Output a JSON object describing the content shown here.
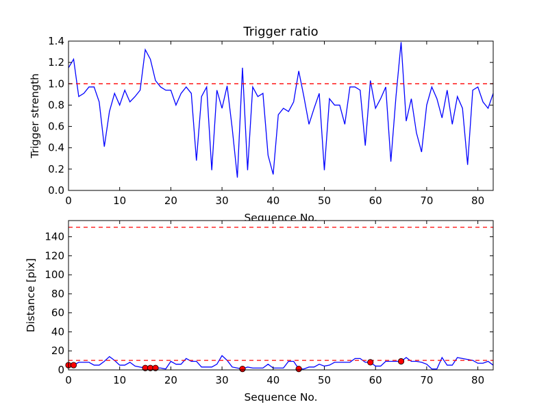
{
  "chart_data": [
    {
      "type": "line",
      "title": "Trigger ratio",
      "xlabel": "Sequence No.",
      "ylabel": "Trigger strength",
      "xlim": [
        0,
        83
      ],
      "ylim": [
        0,
        1.4
      ],
      "xticks": [
        0,
        10,
        20,
        30,
        40,
        50,
        60,
        70,
        80
      ],
      "yticks": [
        0.0,
        0.2,
        0.4,
        0.6,
        0.8,
        1.0,
        1.2,
        1.4
      ],
      "ytick_labels": [
        "0.0",
        "0.2",
        "0.4",
        "0.6",
        "0.8",
        "1.0",
        "1.2",
        "1.4"
      ],
      "grid": false,
      "series": [
        {
          "color": "#0000ff",
          "style": "solid",
          "x": [
            0,
            1,
            2,
            3,
            4,
            5,
            6,
            7,
            8,
            9,
            10,
            11,
            12,
            13,
            14,
            15,
            16,
            17,
            18,
            19,
            20,
            21,
            22,
            23,
            24,
            25,
            26,
            27,
            28,
            29,
            30,
            31,
            32,
            33,
            34,
            35,
            36,
            37,
            38,
            39,
            40,
            41,
            42,
            43,
            44,
            45,
            46,
            47,
            48,
            49,
            50,
            51,
            52,
            53,
            54,
            55,
            56,
            57,
            58,
            59,
            60,
            61,
            62,
            63,
            64,
            65,
            66,
            67,
            68,
            69,
            70,
            71,
            72,
            73,
            74,
            75,
            76,
            77,
            78,
            79,
            80,
            81,
            82,
            83
          ],
          "values": [
            1.15,
            1.23,
            0.88,
            0.91,
            0.97,
            0.97,
            0.83,
            0.41,
            0.74,
            0.91,
            0.8,
            0.94,
            0.83,
            0.88,
            0.94,
            1.32,
            1.23,
            1.03,
            0.97,
            0.94,
            0.94,
            0.8,
            0.91,
            0.97,
            0.91,
            0.28,
            0.88,
            0.97,
            0.19,
            0.94,
            0.77,
            0.98,
            0.58,
            0.12,
            1.15,
            0.19,
            0.97,
            0.88,
            0.91,
            0.33,
            0.15,
            0.71,
            0.77,
            0.74,
            0.83,
            1.12,
            0.88,
            0.62,
            0.77,
            0.91,
            0.19,
            0.86,
            0.8,
            0.8,
            0.62,
            0.97,
            0.97,
            0.94,
            0.42,
            1.03,
            0.77,
            0.86,
            0.97,
            0.27,
            0.88,
            1.39,
            0.65,
            0.86,
            0.54,
            0.36,
            0.8,
            0.97,
            0.86,
            0.68,
            0.94,
            0.62,
            0.88,
            0.77,
            0.24,
            0.94,
            0.97,
            0.83,
            0.77,
            0.91
          ]
        },
        {
          "color": "#ff0000",
          "style": "dashed",
          "x": [
            0,
            83
          ],
          "values": [
            1.0,
            1.0
          ]
        }
      ]
    },
    {
      "type": "line",
      "title": "",
      "xlabel": "Sequence No.",
      "ylabel": "Distance [pix]",
      "xlim": [
        0,
        83
      ],
      "ylim": [
        0,
        157
      ],
      "xticks": [
        0,
        10,
        20,
        30,
        40,
        50,
        60,
        70,
        80
      ],
      "yticks": [
        0,
        20,
        40,
        60,
        80,
        100,
        120,
        140
      ],
      "ytick_labels": [
        "0",
        "20",
        "40",
        "60",
        "80",
        "100",
        "120",
        "140"
      ],
      "grid": false,
      "series": [
        {
          "color": "#0000ff",
          "style": "solid",
          "x": [
            0,
            1,
            2,
            3,
            4,
            5,
            6,
            7,
            8,
            9,
            10,
            11,
            12,
            13,
            14,
            15,
            16,
            17,
            18,
            19,
            20,
            21,
            22,
            23,
            24,
            25,
            26,
            27,
            28,
            29,
            30,
            31,
            32,
            33,
            34,
            35,
            36,
            37,
            38,
            39,
            40,
            41,
            42,
            43,
            44,
            45,
            46,
            47,
            48,
            49,
            50,
            51,
            52,
            53,
            54,
            55,
            56,
            57,
            58,
            59,
            60,
            61,
            62,
            63,
            64,
            65,
            66,
            67,
            68,
            69,
            70,
            71,
            72,
            73,
            74,
            75,
            76,
            77,
            78,
            79,
            80,
            81,
            82,
            83
          ],
          "values": [
            5,
            5,
            8,
            8,
            8,
            5,
            5,
            9,
            14,
            10,
            5,
            5,
            8,
            4,
            3,
            2,
            2,
            2,
            2,
            1,
            9,
            6,
            6,
            12,
            9,
            9,
            3,
            3,
            3,
            6,
            15,
            10,
            3,
            2,
            1,
            3,
            2,
            2,
            2,
            6,
            2,
            2,
            2,
            9,
            9,
            1,
            1,
            3,
            3,
            6,
            4,
            5,
            8,
            8,
            8,
            8,
            12,
            12,
            8,
            8,
            4,
            4,
            9,
            9,
            9,
            9,
            13,
            9,
            9,
            8,
            6,
            1,
            1,
            13,
            5,
            5,
            13,
            12,
            11,
            10,
            7,
            7,
            9,
            5
          ]
        },
        {
          "color": "#ff0000",
          "style": "dashed",
          "x": [
            0,
            83
          ],
          "values": [
            150,
            150
          ]
        },
        {
          "color": "#ff0000",
          "style": "dashed",
          "x": [
            0,
            83
          ],
          "values": [
            10,
            10
          ]
        },
        {
          "color": "#ff0000",
          "style": "markers",
          "x": [
            0,
            1,
            15,
            16,
            17,
            34,
            45,
            59,
            65
          ],
          "values": [
            5,
            5,
            2,
            2,
            2,
            1,
            1,
            8,
            9
          ]
        }
      ]
    }
  ]
}
